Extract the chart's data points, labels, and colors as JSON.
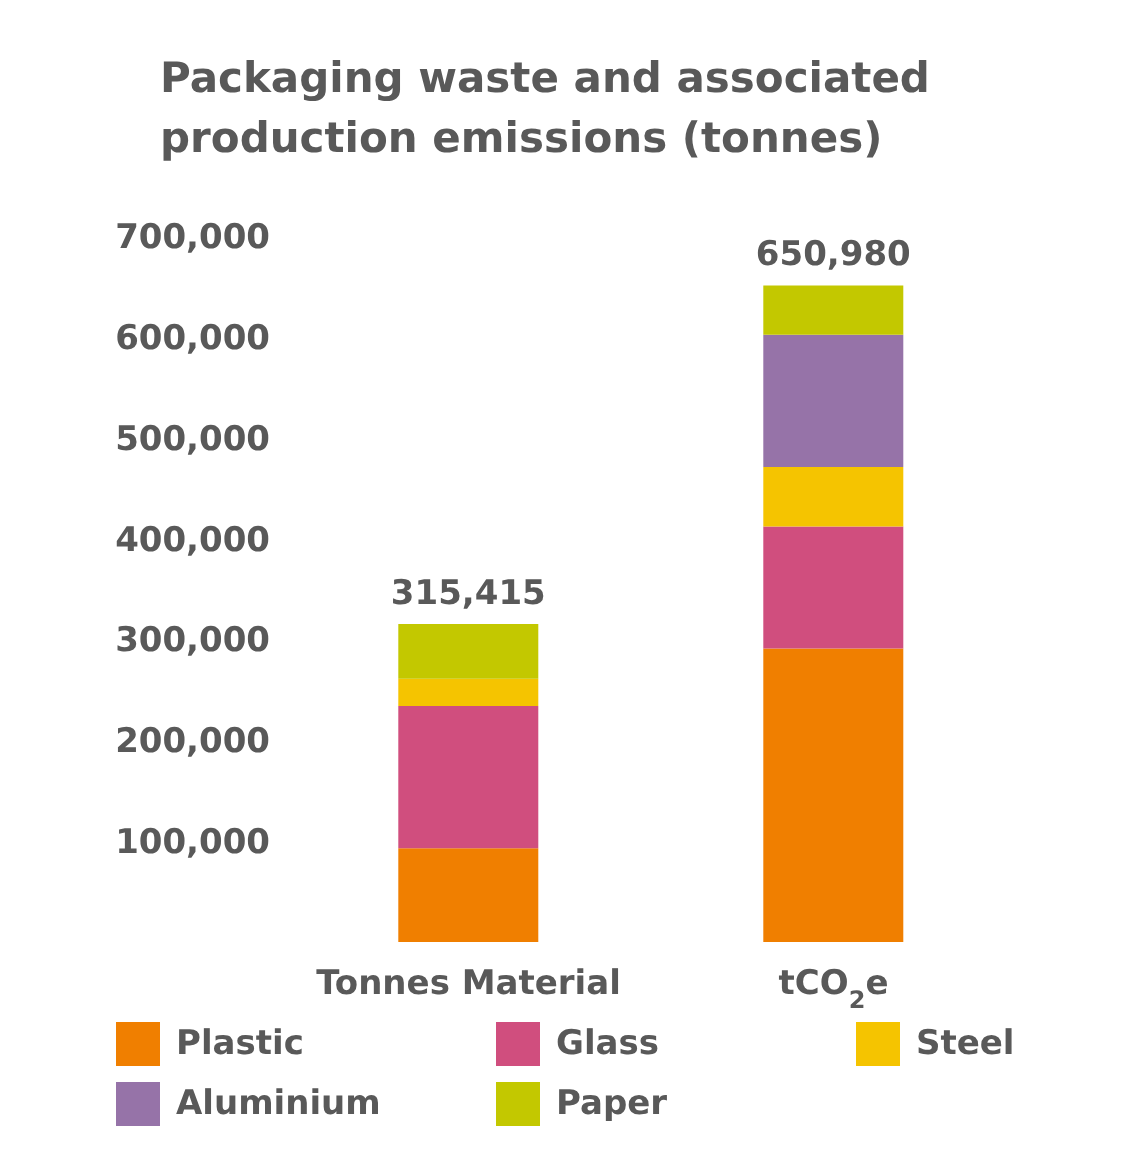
{
  "chart_data": {
    "type": "bar",
    "stacked": true,
    "title": "Packaging waste and associated production emissions (tonnes)",
    "categories": [
      "Tonnes Material",
      "tCO$_{2}$e"
    ],
    "series": [
      {
        "name": "Plastic",
        "color": "#f07f00",
        "values": [
          93000,
          291000
        ]
      },
      {
        "name": "Glass",
        "color": "#d04e7e",
        "values": [
          141000,
          121000
        ]
      },
      {
        "name": "Steel",
        "color": "#f5c400",
        "values": [
          27000,
          59000
        ]
      },
      {
        "name": "Aluminium",
        "color": "#9673a8",
        "values": [
          0,
          131000
        ]
      },
      {
        "name": "Paper",
        "color": "#c3c800",
        "values": [
          54415,
          48980
        ]
      }
    ],
    "totals": [
      "315,415",
      "650,980"
    ],
    "ylim": [
      0,
      700000
    ],
    "yticks": [
      {
        "value": 100000,
        "label": "100,000"
      },
      {
        "value": 200000,
        "label": "200,000"
      },
      {
        "value": 300000,
        "label": "300,000"
      },
      {
        "value": 400000,
        "label": "400,000"
      },
      {
        "value": 500000,
        "label": "500,000"
      },
      {
        "value": 600000,
        "label": "600,000"
      },
      {
        "value": 700000,
        "label": "700,000"
      }
    ],
    "grid": false,
    "legend": "bottom"
  }
}
